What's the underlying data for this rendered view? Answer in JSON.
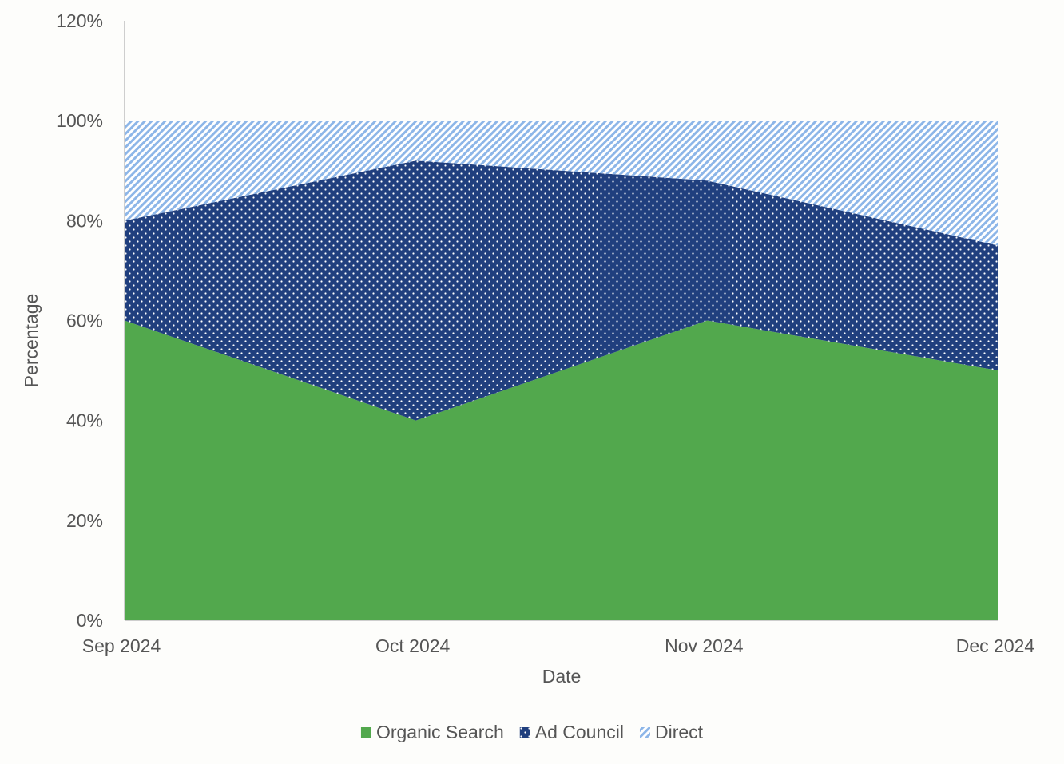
{
  "chart_data": {
    "type": "area",
    "stacked": true,
    "title": "",
    "xlabel": "Date",
    "ylabel": "Percentage",
    "categories": [
      "Sep 2024",
      "Oct 2024",
      "Nov 2024",
      "Dec 2024"
    ],
    "ylim": [
      0,
      120
    ],
    "yticks": [
      0,
      20,
      40,
      60,
      80,
      100,
      120
    ],
    "ytick_labels": [
      "0%",
      "20%",
      "40%",
      "60%",
      "80%",
      "100%",
      "120%"
    ],
    "grid": false,
    "legend_position": "bottom",
    "series": [
      {
        "name": "Organic Search",
        "values": [
          60,
          40,
          60,
          50
        ],
        "color": "#52a84d",
        "pattern": "solid"
      },
      {
        "name": "Ad Council",
        "values": [
          20,
          52,
          28,
          25
        ],
        "color": "#203f7e",
        "pattern": "dots"
      },
      {
        "name": "Direct",
        "values": [
          20,
          8,
          12,
          25
        ],
        "color": "#8db6e8",
        "pattern": "diagonal-stripes"
      }
    ]
  }
}
